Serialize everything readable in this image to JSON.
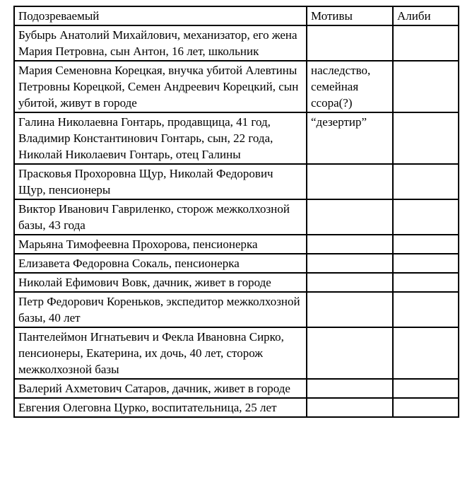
{
  "table": {
    "headers": [
      "Подозреваемый",
      "Мотивы",
      "Алиби"
    ],
    "rows": [
      {
        "suspect": "Бубырь Анатолий Михайлович, механизатор, его жена Мария Петровна, сын Антон, 16 лет, школьник",
        "motives": "",
        "alibi": ""
      },
      {
        "suspect": "Мария Семеновна Корецкая, внучка убитой Алевтины Петровны Корецкой,  Семен Андреевич Корецкий, сын убитой, живут в городе",
        "motives": "наследство, семейная ссора(?)",
        "alibi": ""
      },
      {
        "suspect": "Галина Николаевна Гонтарь, продавщица, 41 год, Владимир Константинович Гонтарь, сын, 22 года, Николай Николаевич Гонтарь, отец Галины",
        "motives": "“дезертир”",
        "alibi": ""
      },
      {
        "suspect": "Прасковья Прохоровна Щур, Николай Федорович Щур, пенсионеры",
        "motives": "",
        "alibi": ""
      },
      {
        "suspect": "Виктор Иванович Гавриленко, сторож межколхозной базы, 43 года",
        "motives": "",
        "alibi": ""
      },
      {
        "suspect": "Марьяна Тимофеевна Прохорова, пенсионерка",
        "motives": "",
        "alibi": ""
      },
      {
        "suspect": "Елизавета Федоровна Сокаль, пенсионерка",
        "motives": "",
        "alibi": ""
      },
      {
        "suspect": "Николай Ефимович Вовк, дачник, живет в городе",
        "motives": "",
        "alibi": ""
      },
      {
        "suspect": "Петр Федорович Кореньков, экспедитор межколхозной базы, 40 лет",
        "motives": "",
        "alibi": ""
      },
      {
        "suspect": "Пантелеймон Игнатьевич и Фекла Ивановна Сирко, пенсионеры, Екатерина, их дочь, 40 лет, сторож межколхозной базы",
        "motives": "",
        "alibi": ""
      },
      {
        "suspect": "Валерий Ахметович Сатаров, дачник, живет в городе",
        "motives": "",
        "alibi": ""
      },
      {
        "suspect": "Евгения Олеговна Цурко, воспитательница, 25 лет",
        "motives": "",
        "alibi": ""
      }
    ]
  }
}
